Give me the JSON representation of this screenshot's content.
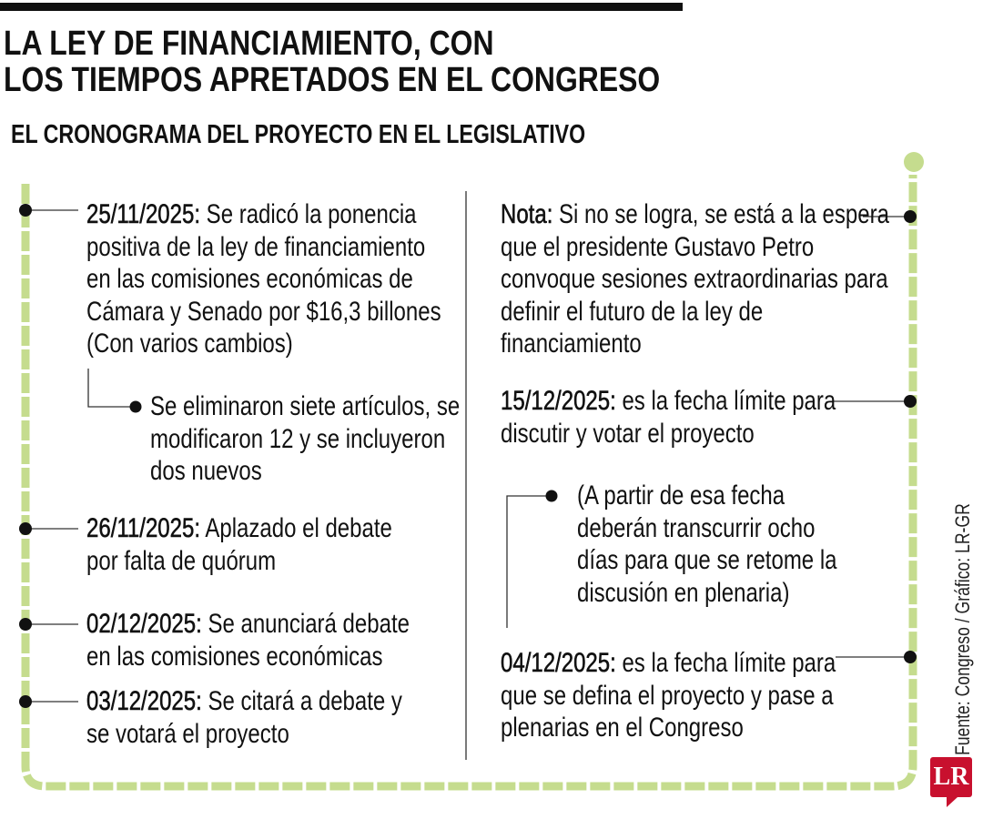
{
  "header": {
    "title_lines": [
      "LA LEY DE FINANCIAMIENTO, CON",
      "LOS TIEMPOS APRETADOS EN EL CONGRESO"
    ],
    "subtitle": "EL CRONOGRAMA DEL PROYECTO EN EL LEGISLATIVO"
  },
  "left": [
    {
      "date": "25/11/2025:",
      "lines": [
        " Se radicó la ponencia",
        "positiva de la ley de financiamiento",
        "en las comisiones económicas de",
        "Cámara y Senado por $16,3 billones",
        "(Con varios cambios)"
      ]
    },
    {
      "lines": [
        "Se eliminaron siete artículos, se",
        "modificaron 12 y se incluyeron",
        "dos nuevos"
      ]
    },
    {
      "date": "26/11/2025:",
      "lines": [
        " Aplazado el debate",
        "por falta de quórum"
      ]
    },
    {
      "date": "02/12/2025:",
      "lines": [
        " Se anunciará debate",
        "en las comisiones económicas"
      ]
    },
    {
      "date": "03/12/2025:",
      "lines": [
        " Se citará a debate y",
        "se votará el proyecto"
      ]
    }
  ],
  "right": [
    {
      "date": "Nota:",
      "lines": [
        " Si no se logra, se está a la espera",
        "que el presidente Gustavo Petro",
        "convoque sesiones extraordinarias para",
        "definir el futuro de la ley de",
        "financiamiento"
      ]
    },
    {
      "date": "15/12/2025:",
      "lines": [
        " es la fecha límite para",
        "discutir y votar el proyecto"
      ]
    },
    {
      "lines": [
        "(A partir de esa fecha",
        "deberán transcurrir ocho",
        "días para que se retome la",
        "discusión en plenaria)"
      ]
    },
    {
      "date": "04/12/2025:",
      "lines": [
        " es la fecha límite para",
        "que se defina el proyecto y pase a",
        "plenarias en el Congreso"
      ]
    }
  ],
  "source": "Fuente: Congreso / Gráfico: LR-GR",
  "logo": "LR",
  "colors": {
    "path": "#c5dc8e",
    "logo": "#c8102e",
    "text": "#111111"
  }
}
